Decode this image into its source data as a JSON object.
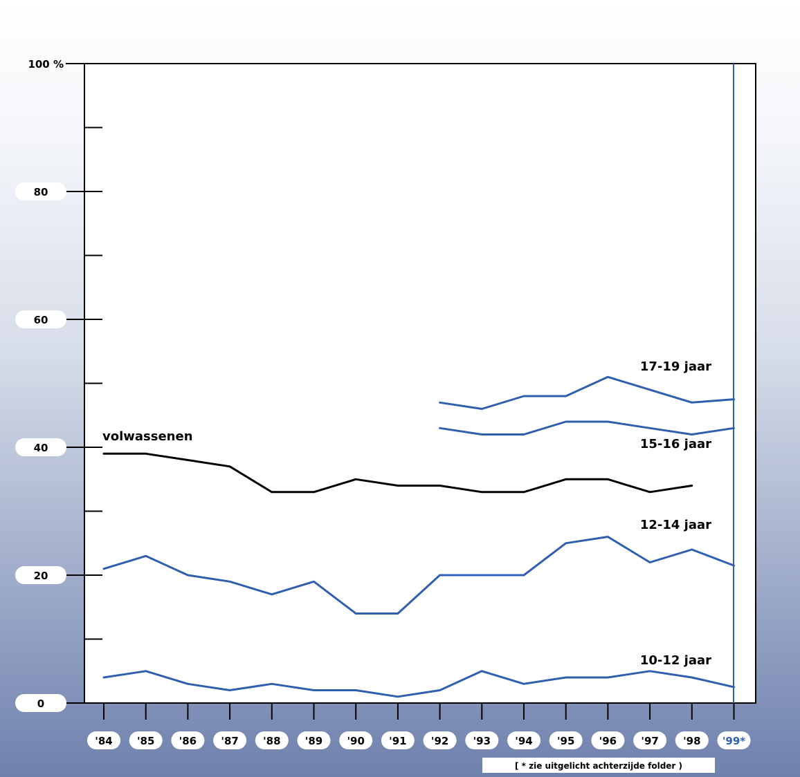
{
  "chart_data": {
    "type": "line",
    "ylabel": "",
    "xlabel": "",
    "ylim": [
      0,
      100
    ],
    "y_tick_labels": [
      {
        "value": 100,
        "label": "100 %"
      },
      {
        "value": 80,
        "label": "80"
      },
      {
        "value": 60,
        "label": "60"
      },
      {
        "value": 40,
        "label": "40"
      },
      {
        "value": 20,
        "label": "20"
      },
      {
        "value": 0,
        "label": "0"
      }
    ],
    "y_minor_ticks": [
      90,
      70,
      50,
      30,
      10
    ],
    "categories": [
      "'84",
      "'85",
      "'86",
      "'87",
      "'88",
      "'89",
      "'90",
      "'91",
      "'92",
      "'93",
      "'94",
      "'95",
      "'96",
      "'97",
      "'98",
      "'99*"
    ],
    "highlight_category": "'99*",
    "grid": false,
    "series": [
      {
        "name": "volwassenen",
        "color": "#000000",
        "values": [
          39,
          39,
          38,
          37,
          33,
          33,
          35,
          34,
          34,
          33,
          33,
          35,
          35,
          33,
          34,
          null
        ]
      },
      {
        "name": "17-19 jaar",
        "color": "#2f5fae",
        "values": [
          null,
          null,
          null,
          null,
          null,
          null,
          null,
          null,
          47,
          46,
          48,
          48,
          51,
          49,
          47,
          47.5
        ]
      },
      {
        "name": "15-16 jaar",
        "color": "#2f5fae",
        "values": [
          null,
          null,
          null,
          null,
          null,
          null,
          null,
          null,
          43,
          42,
          42,
          44,
          44,
          43,
          42,
          43
        ]
      },
      {
        "name": "12-14 jaar",
        "color": "#2f5fae",
        "values": [
          21,
          23,
          20,
          19,
          17,
          19,
          14,
          14,
          20,
          20,
          20,
          25,
          26,
          22,
          24,
          21.5
        ]
      },
      {
        "name": "10-12 jaar",
        "color": "#2f5fae",
        "values": [
          4,
          5,
          3,
          2,
          3,
          2,
          2,
          1,
          2,
          5,
          3,
          4,
          4,
          5,
          4,
          2.5
        ]
      }
    ],
    "footnote": "[ * zie uitgelicht achterzijde folder )"
  },
  "colors": {
    "axis": "#000000",
    "accent": "#2f5fae",
    "plot_background": "#ffffff"
  }
}
